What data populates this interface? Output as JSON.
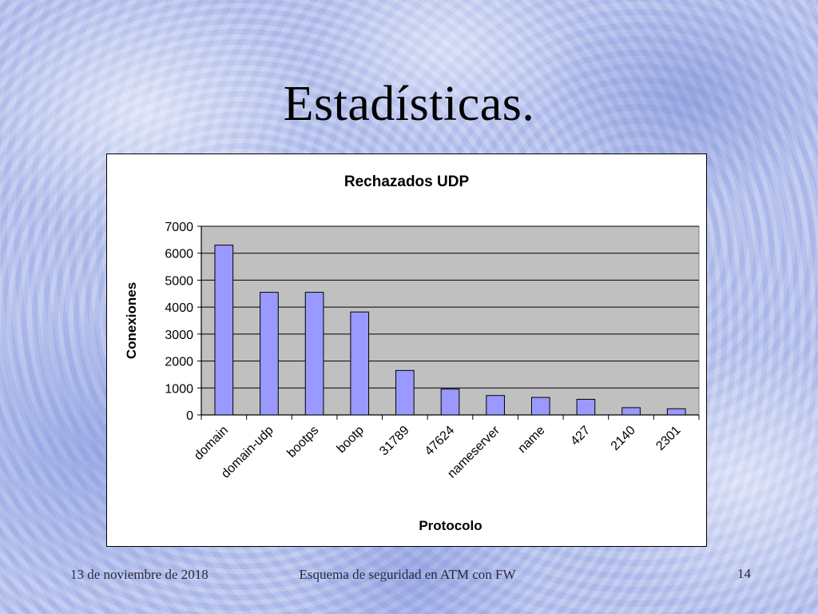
{
  "slide": {
    "title": "Estadísticas.",
    "footer_date": "13 de noviembre de 2018",
    "footer_center": "Esquema de seguridad en ATM con FW",
    "page_number": "14"
  },
  "colors": {
    "bar_fill": "#9999ff",
    "plot_bg": "#c0c0c0",
    "border": "#000000"
  },
  "chart_data": {
    "type": "bar",
    "title": "Rechazados UDP",
    "xlabel": "Protocolo",
    "ylabel": "Conexiones",
    "categories": [
      "domain",
      "domain-udp",
      "bootps",
      "bootp",
      "31789",
      "47624",
      "nameserver",
      "name",
      "427",
      "2140",
      "2301"
    ],
    "values": [
      6300,
      4550,
      4550,
      3820,
      1650,
      960,
      720,
      650,
      580,
      270,
      230
    ],
    "ylim": [
      0,
      7000
    ],
    "yticks": [
      0,
      1000,
      2000,
      3000,
      4000,
      5000,
      6000,
      7000
    ],
    "grid": true,
    "legend": "none"
  }
}
